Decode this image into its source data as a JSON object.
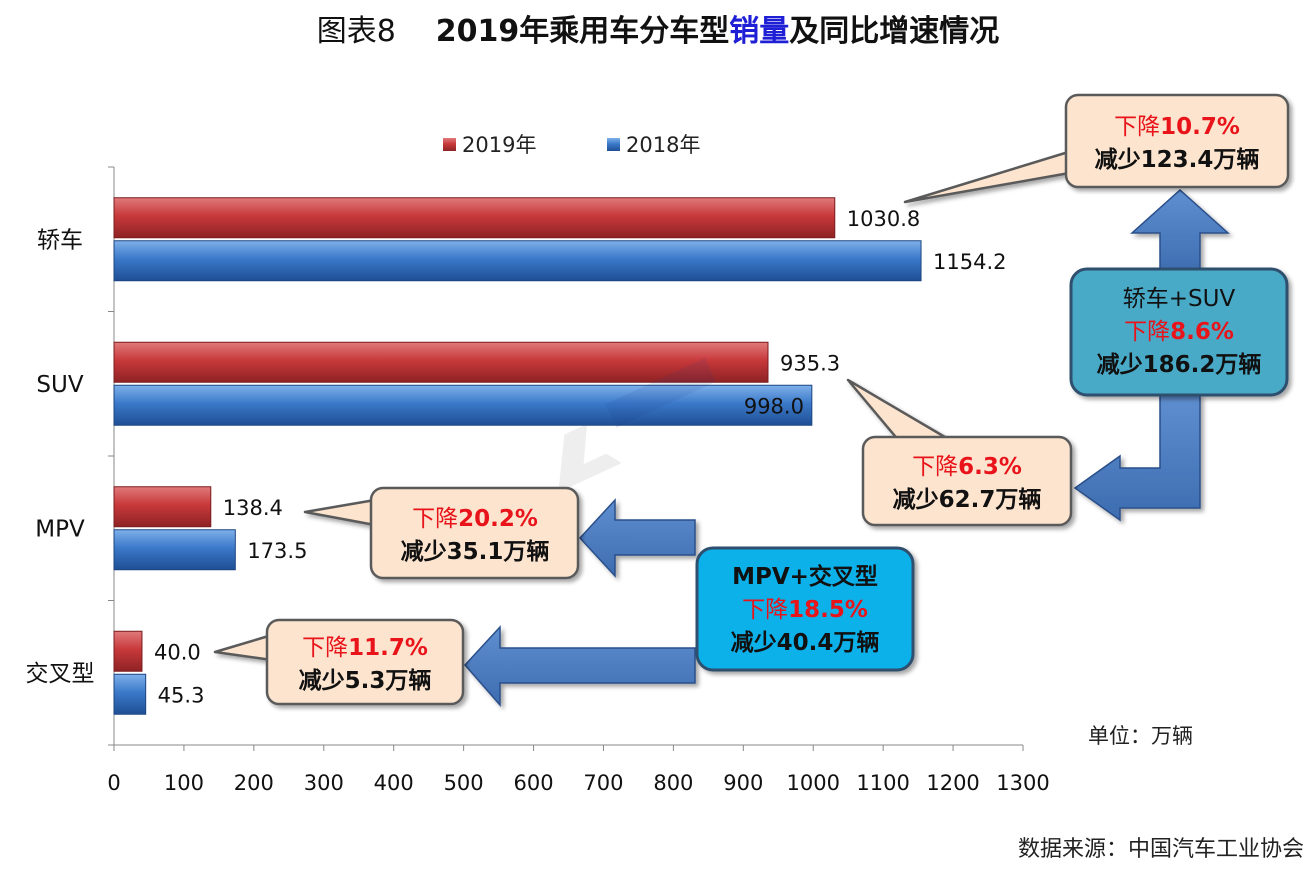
{
  "title": {
    "prefix": "图表8",
    "main_before": "2019年乘用车分车型",
    "main_highlight": "销量",
    "main_after": "及同比增速情况"
  },
  "unit_label": "单位：万辆",
  "source": "数据来源：中国汽车工业协会",
  "colors": {
    "series_2019": "#c0393b",
    "series_2018": "#3a78c8",
    "callout_fill": "#fce4cf",
    "highlight_red": "#e8141a"
  },
  "chart_data": {
    "type": "bar",
    "orientation": "horizontal",
    "categories": [
      "轿车",
      "SUV",
      "MPV",
      "交叉型"
    ],
    "series": [
      {
        "name": "2019年",
        "values": [
          1030.8,
          935.3,
          138.4,
          40.0
        ],
        "labels": [
          "1030.8",
          "935.3",
          "138.4",
          "40.0"
        ]
      },
      {
        "name": "2018年",
        "values": [
          1154.2,
          998.0,
          173.5,
          45.3
        ],
        "labels": [
          "1154.2",
          "998.0",
          "173.5",
          "45.3"
        ]
      }
    ],
    "xlim": [
      0,
      1300
    ],
    "x_ticks": [
      "0",
      "100",
      "200",
      "300",
      "400",
      "500",
      "600",
      "700",
      "800",
      "900",
      "1000",
      "1100",
      "1200",
      "1300"
    ],
    "legend": [
      "2019年",
      "2018年"
    ],
    "legend_position": "top",
    "grid": false
  },
  "callouts": {
    "sedan": {
      "line1_prefix": "下降",
      "line1_value": "10.7%",
      "line2": "减少123.4万辆"
    },
    "suv": {
      "line1_prefix": "下降",
      "line1_value": "6.3%",
      "line2": "减少62.7万辆"
    },
    "mpv": {
      "line1_prefix": "下降",
      "line1_value": "20.2%",
      "line2": "减少35.1万辆"
    },
    "crossover": {
      "line1_prefix": "下降",
      "line1_value": "11.7%",
      "line2": "减少5.3万辆"
    },
    "sedan_suv": {
      "heading": "轿车+SUV",
      "line1_prefix": "下降",
      "line1_value": "8.6%",
      "line2": "减少186.2万辆"
    },
    "mpv_crossover": {
      "heading": "MPV+交叉型",
      "line1_prefix": "下降",
      "line1_value": "18.5%",
      "line2": "减少40.4万辆"
    }
  }
}
